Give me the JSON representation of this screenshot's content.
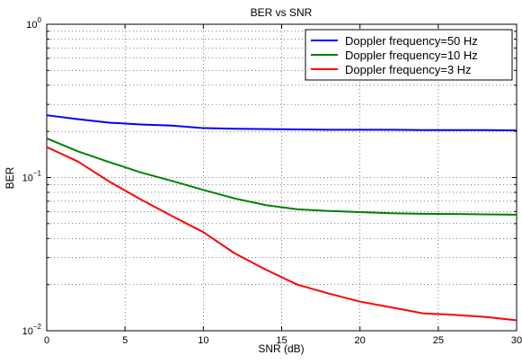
{
  "chart_data": {
    "type": "line",
    "title": "BER vs SNR",
    "xlabel": "SNR (dB)",
    "ylabel": "BER",
    "xlim": [
      0,
      30
    ],
    "ylim": [
      0.01,
      1
    ],
    "yscale": "log",
    "grid": true,
    "legend_position": "top-right",
    "x_ticks": [
      0,
      5,
      10,
      15,
      20,
      25,
      30
    ],
    "x_tick_labels": [
      "0",
      "5",
      "10",
      "15",
      "20",
      "25",
      "30"
    ],
    "y_ticks": [
      {
        "value": 1,
        "base": "10",
        "exp": "0"
      },
      {
        "value": 0.1,
        "base": "10",
        "exp": "−1"
      },
      {
        "value": 0.01,
        "base": "10",
        "exp": "−2"
      }
    ],
    "series": [
      {
        "name": "Doppler frequency=50 Hz",
        "color": "#0000ff",
        "x": [
          0,
          2,
          4,
          6,
          8,
          10,
          12,
          14,
          16,
          18,
          20,
          22,
          24,
          26,
          28,
          30
        ],
        "y": [
          0.255,
          0.24,
          0.228,
          0.222,
          0.218,
          0.21,
          0.208,
          0.207,
          0.206,
          0.205,
          0.205,
          0.205,
          0.204,
          0.204,
          0.204,
          0.203
        ]
      },
      {
        "name": "Doppler frequency=10 Hz",
        "color": "#008000",
        "x": [
          0,
          2,
          4,
          6,
          8,
          10,
          12,
          14,
          16,
          18,
          20,
          22,
          24,
          26,
          28,
          30
        ],
        "y": [
          0.18,
          0.148,
          0.126,
          0.108,
          0.095,
          0.083,
          0.073,
          0.066,
          0.062,
          0.0605,
          0.0595,
          0.0585,
          0.058,
          0.0578,
          0.0575,
          0.0572
        ]
      },
      {
        "name": "Doppler frequency=3 Hz",
        "color": "#ff0000",
        "x": [
          0,
          2,
          4,
          6,
          8,
          10,
          12,
          14,
          16,
          18,
          20,
          22,
          24,
          26,
          28,
          30
        ],
        "y": [
          0.158,
          0.127,
          0.094,
          0.072,
          0.056,
          0.044,
          0.032,
          0.025,
          0.02,
          0.0175,
          0.0155,
          0.0142,
          0.013,
          0.0127,
          0.0123,
          0.0117
        ]
      }
    ]
  }
}
